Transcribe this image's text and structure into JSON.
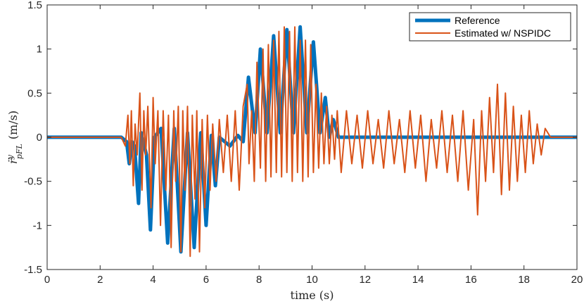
{
  "chart_data": {
    "type": "line",
    "title": "",
    "xlabel": "time (s)",
    "ylabel": "r̈ y pFL (m/s)",
    "ylabel_parts": {
      "var": "r̈",
      "sup": "y",
      "sub": "pFL",
      "unit": "(m/s)"
    },
    "xlim": [
      0,
      20
    ],
    "ylim": [
      -1.5,
      1.5
    ],
    "xticks": [
      0,
      2,
      4,
      6,
      8,
      10,
      12,
      14,
      16,
      18,
      20
    ],
    "yticks": [
      -1.5,
      -1,
      -0.5,
      0,
      0.5,
      1,
      1.5
    ],
    "xtick_labels": [
      "0",
      "2",
      "4",
      "6",
      "8",
      "10",
      "12",
      "14",
      "16",
      "18",
      "20"
    ],
    "ytick_labels": [
      "-1.5",
      "-1",
      "-0.5",
      "0",
      "0.5",
      "1",
      "1.5"
    ],
    "grid": false,
    "legend_position": "top-right",
    "series": [
      {
        "name": "Reference",
        "color": "#0072BD",
        "x": [
          0,
          2.8,
          3.0,
          3.1,
          3.2,
          3.3,
          3.45,
          3.55,
          3.75,
          3.9,
          4.05,
          4.3,
          4.55,
          4.8,
          5.05,
          5.3,
          5.55,
          5.8,
          6.0,
          6.2,
          6.35,
          6.5,
          6.9,
          7.2,
          7.4,
          7.6,
          7.85,
          8.05,
          8.3,
          8.55,
          8.8,
          9.05,
          9.3,
          9.55,
          9.8,
          10.05,
          10.3,
          10.5,
          10.65,
          10.8,
          11.0,
          11.5,
          19.0,
          20.0
        ],
        "y": [
          0,
          0,
          -0.05,
          -0.3,
          -0.05,
          -0.1,
          -0.75,
          0.05,
          -0.2,
          -1.05,
          0.0,
          0.1,
          -1.2,
          0.1,
          -1.3,
          0.05,
          -1.25,
          0.05,
          -1.0,
          0.02,
          -0.55,
          0.0,
          -0.1,
          0.02,
          -0.05,
          0.68,
          0.05,
          1.0,
          0.05,
          1.15,
          0.05,
          1.22,
          0.05,
          1.25,
          0.05,
          1.08,
          0.05,
          0.45,
          0.0,
          0.2,
          0.0,
          0.0,
          0.0,
          0.0
        ]
      },
      {
        "name": "Estimated w/ NSPIDC",
        "color": "#D95319",
        "x": [
          0.0,
          1.0,
          2.0,
          2.8,
          2.95,
          3.05,
          3.12,
          3.18,
          3.25,
          3.32,
          3.4,
          3.5,
          3.58,
          3.65,
          3.72,
          3.8,
          3.92,
          4.0,
          4.08,
          4.18,
          4.28,
          4.38,
          4.48,
          4.58,
          4.68,
          4.78,
          4.85,
          4.95,
          5.05,
          5.12,
          5.2,
          5.3,
          5.4,
          5.48,
          5.58,
          5.65,
          5.75,
          5.85,
          5.95,
          6.05,
          6.15,
          6.25,
          6.38,
          6.5,
          6.65,
          6.8,
          6.95,
          7.1,
          7.25,
          7.4,
          7.55,
          7.62,
          7.72,
          7.82,
          7.92,
          8.05,
          8.15,
          8.25,
          8.35,
          8.45,
          8.55,
          8.65,
          8.75,
          8.85,
          8.95,
          9.05,
          9.15,
          9.25,
          9.35,
          9.45,
          9.55,
          9.65,
          9.75,
          9.85,
          9.95,
          10.05,
          10.15,
          10.25,
          10.35,
          10.45,
          10.55,
          10.65,
          10.75,
          10.85,
          10.95,
          11.1,
          11.3,
          11.5,
          11.7,
          11.9,
          12.1,
          12.3,
          12.5,
          12.7,
          12.9,
          13.1,
          13.3,
          13.5,
          13.7,
          13.9,
          14.1,
          14.3,
          14.5,
          14.7,
          14.9,
          15.1,
          15.3,
          15.5,
          15.7,
          15.9,
          16.1,
          16.25,
          16.4,
          16.55,
          16.7,
          16.85,
          17.0,
          17.15,
          17.3,
          17.45,
          17.6,
          17.75,
          17.9,
          18.05,
          18.2,
          18.35,
          18.5,
          18.65,
          18.8,
          19.0,
          19.3,
          19.6,
          20.0
        ],
        "y": [
          0.0,
          0.0,
          0.0,
          0.0,
          -0.1,
          0.25,
          -0.3,
          0.3,
          -0.55,
          0.15,
          -0.2,
          0.5,
          -0.6,
          0.3,
          -0.2,
          0.35,
          -0.8,
          0.45,
          -0.3,
          0.3,
          -1.0,
          0.3,
          -0.6,
          0.25,
          -1.25,
          0.3,
          -0.5,
          0.35,
          -1.3,
          0.3,
          -0.6,
          0.35,
          -1.35,
          0.25,
          -0.7,
          0.3,
          -1.3,
          0.2,
          -0.8,
          0.25,
          -0.6,
          0.15,
          -0.5,
          0.2,
          -0.4,
          0.25,
          -0.5,
          0.3,
          -0.6,
          0.35,
          0.6,
          -0.3,
          0.3,
          -0.5,
          0.85,
          -0.35,
          1.0,
          -0.5,
          1.05,
          -0.45,
          1.1,
          -0.4,
          1.2,
          -0.45,
          1.25,
          -0.4,
          1.2,
          -0.5,
          1.25,
          -0.4,
          1.1,
          -0.5,
          1.1,
          -0.45,
          1.05,
          -0.4,
          0.6,
          -0.35,
          0.5,
          -0.3,
          0.35,
          -0.3,
          0.25,
          -0.25,
          0.3,
          -0.4,
          0.3,
          -0.3,
          0.25,
          -0.35,
          0.3,
          -0.3,
          0.2,
          -0.35,
          0.3,
          -0.3,
          0.2,
          -0.4,
          0.3,
          -0.35,
          0.25,
          -0.5,
          0.2,
          -0.35,
          0.3,
          -0.4,
          0.25,
          -0.5,
          0.3,
          -0.6,
          0.2,
          -0.88,
          0.3,
          -0.5,
          0.45,
          -0.4,
          0.6,
          -0.65,
          0.5,
          -0.6,
          0.35,
          -0.5,
          0.25,
          -0.4,
          0.3,
          -0.3,
          0.15,
          -0.2,
          0.1,
          0.0,
          0.0,
          0.0,
          0.0
        ]
      }
    ]
  }
}
